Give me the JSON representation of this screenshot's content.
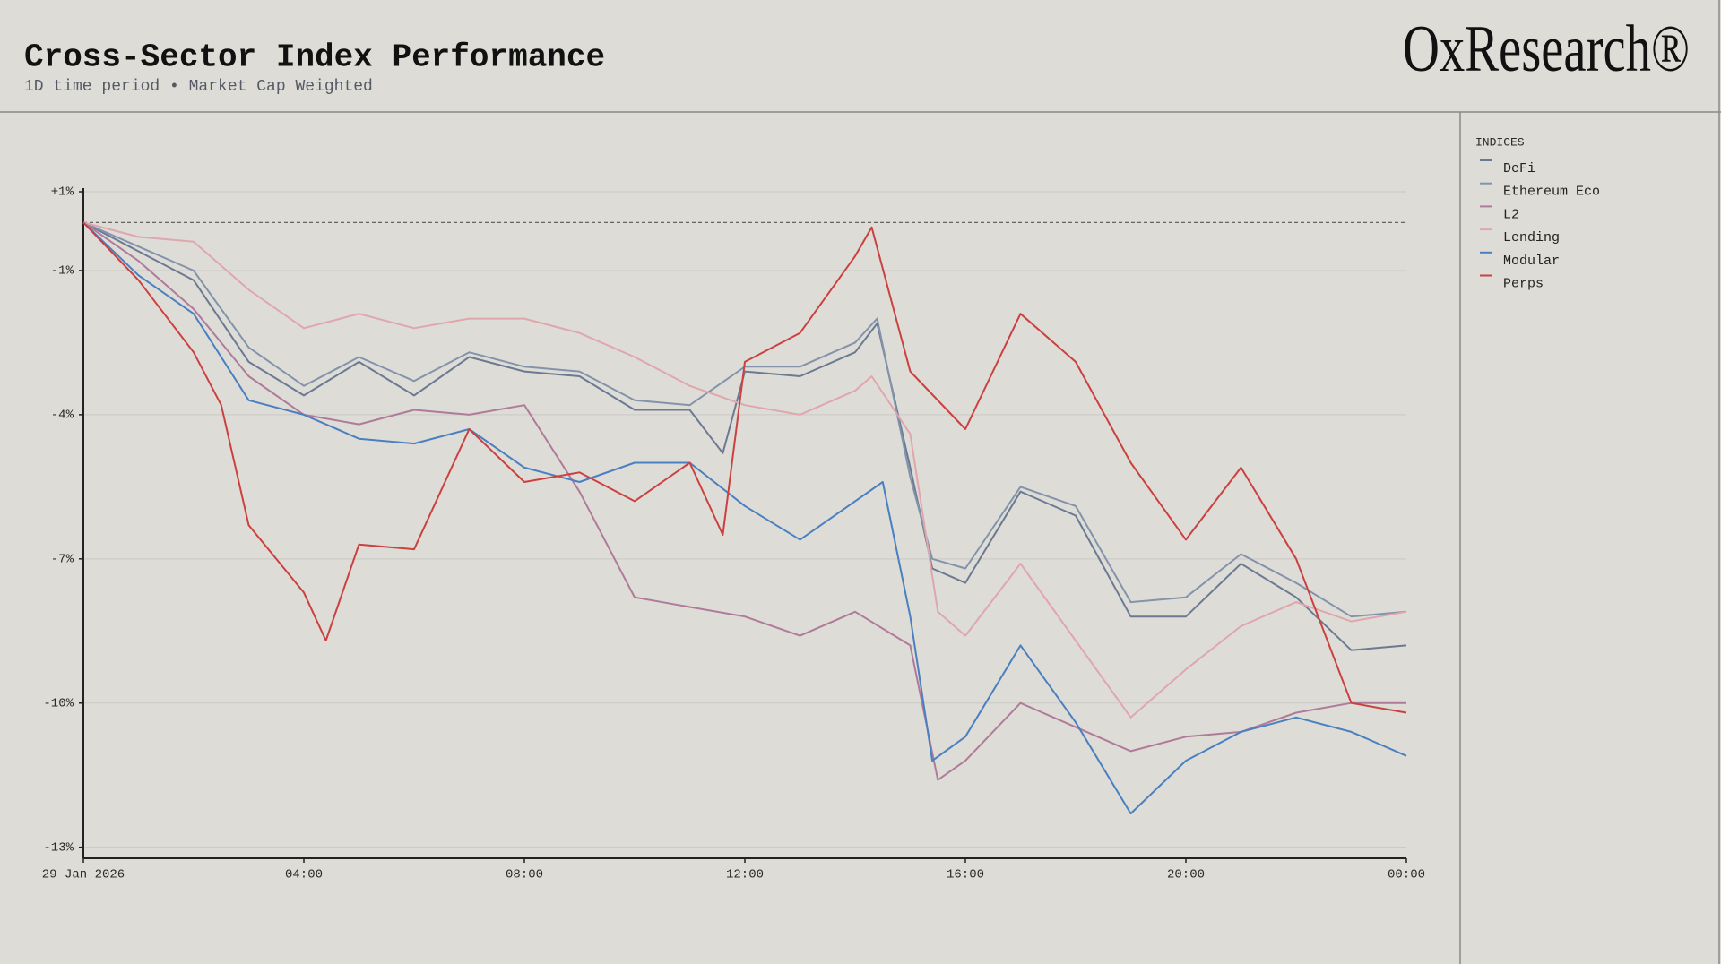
{
  "chart_data": {
    "type": "line",
    "title": "Cross-Sector Index Performance",
    "subtitle": "1D time period • Market Cap Weighted",
    "logo": "OxResearch®",
    "legend_title": "INDICES",
    "legend_position": "right",
    "grid": true,
    "reference_line": 0,
    "xlim": [
      0,
      24
    ],
    "xticks": [
      {
        "value": 0,
        "label": "29 Jan 2026"
      },
      {
        "value": 4,
        "label": "04:00"
      },
      {
        "value": 8,
        "label": "08:00"
      },
      {
        "value": 12,
        "label": "12:00"
      },
      {
        "value": 16,
        "label": "16:00"
      },
      {
        "value": 20,
        "label": "20:00"
      },
      {
        "value": 24,
        "label": "00:00"
      }
    ],
    "ylim": [
      -13.23,
      0.64
    ],
    "yticks": [
      {
        "value": 0.64,
        "label": "+1%"
      },
      {
        "value": -1,
        "label": "-1%"
      },
      {
        "value": -4,
        "label": "-4%"
      },
      {
        "value": -7,
        "label": "-7%"
      },
      {
        "value": -10,
        "label": "-10%"
      },
      {
        "value": -13,
        "label": "-13%"
      }
    ],
    "series": [
      {
        "name": "DeFi",
        "color": "#6b7a92",
        "x": [
          0,
          1,
          2,
          3,
          4,
          5,
          6,
          7,
          8,
          9,
          10,
          11,
          11.6,
          12,
          13,
          14,
          14.4,
          15,
          15.4,
          16,
          17,
          18,
          19,
          20,
          21,
          22,
          23,
          24
        ],
        "values": [
          0,
          -0.6,
          -1.2,
          -2.9,
          -3.6,
          -2.9,
          -3.6,
          -2.8,
          -3.1,
          -3.2,
          -3.9,
          -3.9,
          -4.8,
          -3.1,
          -3.2,
          -2.7,
          -2.1,
          -5.1,
          -7.2,
          -7.5,
          -5.6,
          -6.1,
          -8.2,
          -8.2,
          -7.1,
          -7.8,
          -8.9,
          -8.8
        ]
      },
      {
        "name": "Ethereum Eco",
        "color": "#8393ab",
        "x": [
          0,
          1,
          2,
          3,
          4,
          5,
          6,
          7,
          8,
          9,
          10,
          11,
          12,
          13,
          14,
          14.4,
          15,
          15.4,
          16,
          17,
          18,
          19,
          20,
          21,
          22,
          23,
          24
        ],
        "values": [
          0,
          -0.5,
          -1.0,
          -2.6,
          -3.4,
          -2.8,
          -3.3,
          -2.7,
          -3.0,
          -3.1,
          -3.7,
          -3.8,
          -3.0,
          -3.0,
          -2.5,
          -2.0,
          -5.3,
          -7.0,
          -7.2,
          -5.5,
          -5.9,
          -7.9,
          -7.8,
          -6.9,
          -7.5,
          -8.2,
          -8.1
        ]
      },
      {
        "name": "L2",
        "color": "#b07a9a",
        "x": [
          0,
          1,
          2,
          3,
          4,
          5,
          6,
          7,
          8,
          9,
          10,
          11,
          12,
          13,
          14,
          15,
          15.5,
          16,
          17,
          18,
          19,
          20,
          21,
          22,
          23,
          24
        ],
        "values": [
          0,
          -0.8,
          -1.8,
          -3.2,
          -4.0,
          -4.2,
          -3.9,
          -4.0,
          -3.8,
          -5.6,
          -7.8,
          -8.0,
          -8.2,
          -8.6,
          -8.1,
          -8.8,
          -11.6,
          -11.2,
          -10.0,
          -10.5,
          -11.0,
          -10.7,
          -10.6,
          -10.2,
          -10.0,
          -10.0
        ]
      },
      {
        "name": "Lending",
        "color": "#e0a6ae",
        "x": [
          0,
          1,
          2,
          3,
          4,
          5,
          6,
          7,
          8,
          9,
          10,
          11,
          12,
          13,
          14,
          14.3,
          15,
          15.5,
          16,
          17,
          18,
          19,
          20,
          21,
          22,
          23,
          24
        ],
        "values": [
          0,
          -0.3,
          -0.4,
          -1.4,
          -2.2,
          -1.9,
          -2.2,
          -2.0,
          -2.0,
          -2.3,
          -2.8,
          -3.4,
          -3.8,
          -4.0,
          -3.5,
          -3.2,
          -4.4,
          -8.1,
          -8.6,
          -7.1,
          -8.7,
          -10.3,
          -9.3,
          -8.4,
          -7.9,
          -8.3,
          -8.1
        ]
      },
      {
        "name": "Modular",
        "color": "#4a7fc1",
        "x": [
          0,
          1,
          2,
          3,
          4,
          5,
          6,
          7,
          8,
          9,
          10,
          11,
          12,
          13,
          14,
          14.5,
          15,
          15.4,
          16,
          17,
          18,
          19,
          20,
          21,
          22,
          23,
          24
        ],
        "values": [
          0,
          -1.1,
          -1.9,
          -3.7,
          -4.0,
          -4.5,
          -4.6,
          -4.3,
          -5.1,
          -5.4,
          -5.0,
          -5.0,
          -5.9,
          -6.6,
          -5.8,
          -5.4,
          -8.2,
          -11.2,
          -10.7,
          -8.8,
          -10.4,
          -12.3,
          -11.2,
          -10.6,
          -10.3,
          -10.6,
          -11.1
        ]
      },
      {
        "name": "Perps",
        "color": "#cc4040",
        "x": [
          0,
          1,
          2,
          2.5,
          3,
          4,
          4.4,
          5,
          6,
          7,
          8,
          9,
          10,
          11,
          11.6,
          12,
          13,
          14,
          14.3,
          15,
          16,
          17,
          18,
          19,
          20,
          21,
          22,
          23,
          24
        ],
        "values": [
          0,
          -1.2,
          -2.7,
          -3.8,
          -6.3,
          -7.7,
          -8.7,
          -6.7,
          -6.8,
          -4.3,
          -5.4,
          -5.2,
          -5.8,
          -5.0,
          -6.5,
          -2.9,
          -2.3,
          -0.7,
          -0.1,
          -3.1,
          -4.3,
          -1.9,
          -2.9,
          -5.0,
          -6.6,
          -5.1,
          -7.0,
          -10.0,
          -10.2
        ]
      }
    ]
  }
}
